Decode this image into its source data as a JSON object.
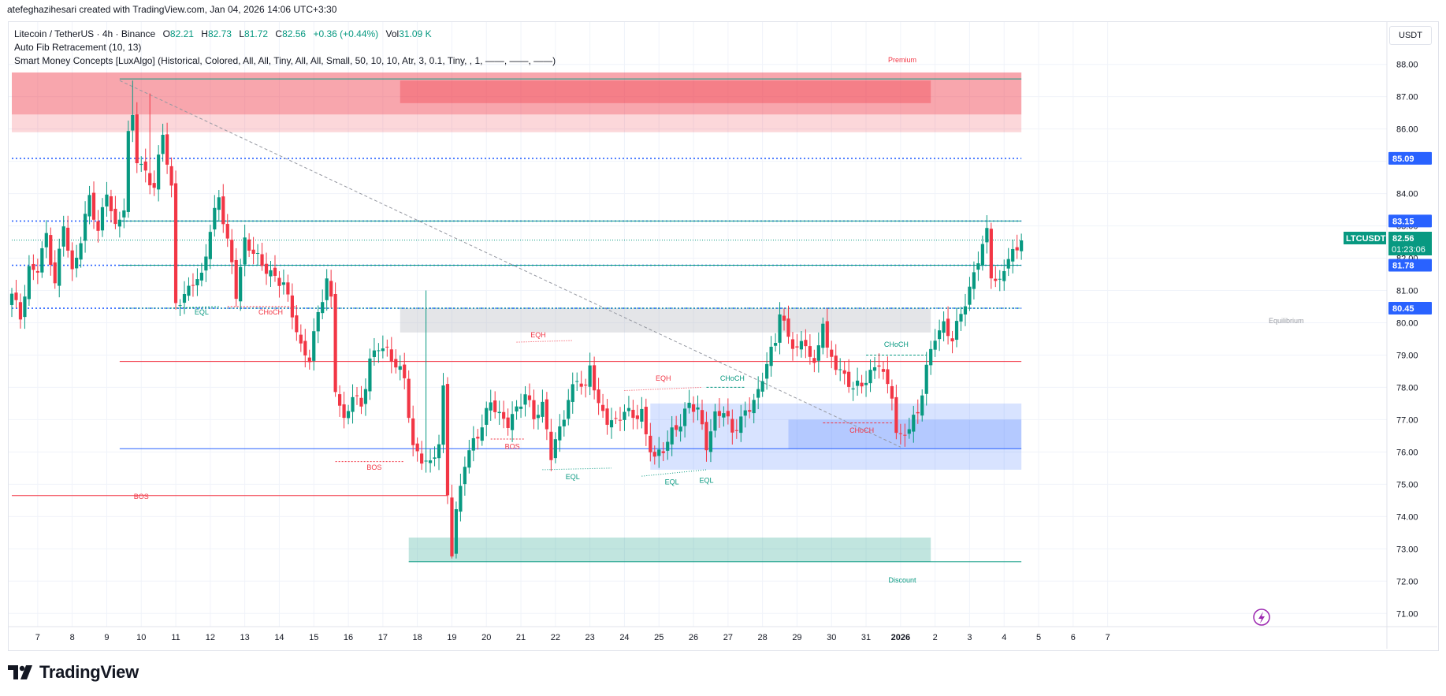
{
  "header": {
    "credit": "atefeghazihesari created with TradingView.com, Jan 04, 2026 14:06 UTC+3:30"
  },
  "legend": {
    "symbol": "Litecoin / TetherUS · 4h · Binance",
    "open_label": "O",
    "open": "82.21",
    "high_label": "H",
    "high": "82.73",
    "low_label": "L",
    "low": "81.72",
    "close_label": "C",
    "close": "82.56",
    "change": "+0.36 (+0.44%)",
    "vol_label": "Vol",
    "vol": "31.09 K",
    "indicator1": "Auto Fib Retracement (10, 13)",
    "indicator2": "Smart Money Concepts [LuxAlgo] (Historical, Colored, All, All, Tiny, All, All, Small, 50, 10, 10, Atr, 3, 0.1, Tiny, , 1, ——, ——, ——)"
  },
  "currency": "USDT",
  "brand": {
    "name": "TradingView",
    "icon": "tradingview-logo-icon"
  },
  "colors": {
    "up": "#089981",
    "down": "#f23645",
    "blue": "#2962ff",
    "premium": "#f23645",
    "discount": "#089981"
  },
  "price_tags": [
    {
      "label": "85.09",
      "price": 85.09,
      "color": "#2962ff"
    },
    {
      "label": "83.15",
      "price": 83.15,
      "color": "#2962ff"
    },
    {
      "label": "81.78",
      "price": 81.78,
      "color": "#2962ff"
    },
    {
      "label": "80.45",
      "price": 80.45,
      "color": "#2962ff"
    }
  ],
  "last_price": {
    "symbol": "LTCUSDT",
    "price": 82.56,
    "label": "82.56",
    "countdown": "01:23:06",
    "color": "#089981"
  },
  "zone_labels": {
    "premium": "Premium",
    "equilibrium": "Equilibrium",
    "discount": "Discount"
  },
  "structure_labels": [
    {
      "text": "EQL",
      "bar": 44,
      "price": 80.25,
      "color": "#089981"
    },
    {
      "text": "CHoCH",
      "bar": 60,
      "price": 80.25,
      "color": "#f23645"
    },
    {
      "text": "BOS",
      "bar": 84,
      "price": 75.45,
      "color": "#f23645"
    },
    {
      "text": "BOS",
      "bar": 30,
      "price": 74.55,
      "color": "#f23645"
    },
    {
      "text": "BOS",
      "bar": 116,
      "price": 76.1,
      "color": "#f23645"
    },
    {
      "text": "EQH",
      "bar": 122,
      "price": 79.55,
      "color": "#f23645"
    },
    {
      "text": "EQL",
      "bar": 130,
      "price": 75.15,
      "color": "#089981"
    },
    {
      "text": "EQH",
      "bar": 151,
      "price": 78.2,
      "color": "#f23645"
    },
    {
      "text": "EQL",
      "bar": 153,
      "price": 75.0,
      "color": "#089981"
    },
    {
      "text": "EQL",
      "bar": 161,
      "price": 75.05,
      "color": "#089981"
    },
    {
      "text": "CHoCH",
      "bar": 167,
      "price": 78.2,
      "color": "#089981"
    },
    {
      "text": "CHoCH",
      "bar": 197,
      "price": 76.6,
      "color": "#f23645"
    },
    {
      "text": "CHoCH",
      "bar": 205,
      "price": 79.25,
      "color": "#089981"
    }
  ],
  "chart_data": {
    "type": "candlestick",
    "title": "",
    "timeframe": "4h",
    "ylim": [
      70.75,
      88.2
    ],
    "y_ticks": [
      71,
      72,
      73,
      74,
      75,
      76,
      77,
      78,
      79,
      80,
      81,
      82,
      83,
      84,
      85,
      86,
      87,
      88
    ],
    "x_tick_labels": [
      {
        "label": "7",
        "bar": 6
      },
      {
        "label": "8",
        "bar": 14
      },
      {
        "label": "9",
        "bar": 22
      },
      {
        "label": "10",
        "bar": 30
      },
      {
        "label": "11",
        "bar": 38
      },
      {
        "label": "12",
        "bar": 46
      },
      {
        "label": "13",
        "bar": 54
      },
      {
        "label": "14",
        "bar": 62
      },
      {
        "label": "15",
        "bar": 70
      },
      {
        "label": "16",
        "bar": 78
      },
      {
        "label": "17",
        "bar": 86
      },
      {
        "label": "18",
        "bar": 94
      },
      {
        "label": "19",
        "bar": 102
      },
      {
        "label": "20",
        "bar": 110
      },
      {
        "label": "21",
        "bar": 118
      },
      {
        "label": "22",
        "bar": 126
      },
      {
        "label": "23",
        "bar": 134
      },
      {
        "label": "24",
        "bar": 142
      },
      {
        "label": "25",
        "bar": 150
      },
      {
        "label": "26",
        "bar": 158
      },
      {
        "label": "27",
        "bar": 166
      },
      {
        "label": "28",
        "bar": 174
      },
      {
        "label": "29",
        "bar": 182
      },
      {
        "label": "30",
        "bar": 190
      },
      {
        "label": "31",
        "bar": 198
      },
      {
        "label": "2026",
        "bar": 206
      },
      {
        "label": "2",
        "bar": 214
      },
      {
        "label": "3",
        "bar": 222
      },
      {
        "label": "4",
        "bar": 230
      },
      {
        "label": "5",
        "bar": 238
      },
      {
        "label": "6",
        "bar": 246
      },
      {
        "label": "7",
        "bar": 254
      }
    ],
    "anchors": [
      [
        0,
        80.9
      ],
      [
        2,
        80.2
      ],
      [
        4,
        81.6
      ],
      [
        6,
        81.7
      ],
      [
        8,
        82.7
      ],
      [
        10,
        81.2
      ],
      [
        12,
        83.1
      ],
      [
        14,
        81.5
      ],
      [
        16,
        82.6
      ],
      [
        18,
        83.9
      ],
      [
        20,
        82.8
      ],
      [
        22,
        84.1
      ],
      [
        24,
        82.9
      ],
      [
        26,
        83.6
      ],
      [
        27,
        85.8
      ],
      [
        28,
        86.4
      ],
      [
        29,
        85.1
      ],
      [
        31,
        84.6
      ],
      [
        33,
        84.2
      ],
      [
        35,
        85.9
      ],
      [
        37,
        84.1
      ],
      [
        38,
        80.6
      ],
      [
        40,
        80.8
      ],
      [
        42,
        81.3
      ],
      [
        44,
        81.4
      ],
      [
        46,
        82.9
      ],
      [
        48,
        83.9
      ],
      [
        49,
        83.2
      ],
      [
        51,
        81.8
      ],
      [
        52,
        80.9
      ],
      [
        54,
        82.5
      ],
      [
        56,
        82.2
      ],
      [
        58,
        81.8
      ],
      [
        60,
        81.5
      ],
      [
        63,
        81.2
      ],
      [
        65,
        80.3
      ],
      [
        67,
        79.2
      ],
      [
        69,
        78.9
      ],
      [
        71,
        80.3
      ],
      [
        73,
        81.3
      ],
      [
        74,
        80.7
      ],
      [
        75,
        78.0
      ],
      [
        77,
        76.9
      ],
      [
        79,
        77.8
      ],
      [
        81,
        77.4
      ],
      [
        83,
        78.8
      ],
      [
        85,
        79.3
      ],
      [
        87,
        79.1
      ],
      [
        89,
        78.7
      ],
      [
        91,
        78.3
      ],
      [
        93,
        76.1
      ],
      [
        95,
        75.8
      ],
      [
        97,
        75.6
      ],
      [
        99,
        76.3
      ],
      [
        100,
        77.9
      ],
      [
        101,
        74.7
      ],
      [
        102,
        72.9
      ],
      [
        103,
        74.1
      ],
      [
        105,
        75.7
      ],
      [
        107,
        76.3
      ],
      [
        109,
        76.8
      ],
      [
        111,
        77.6
      ],
      [
        113,
        77.1
      ],
      [
        115,
        76.9
      ],
      [
        117,
        77.3
      ],
      [
        119,
        77.8
      ],
      [
        121,
        77.1
      ],
      [
        123,
        77.4
      ],
      [
        124,
        76.7
      ],
      [
        125,
        75.9
      ],
      [
        127,
        76.7
      ],
      [
        129,
        77.6
      ],
      [
        131,
        78.3
      ],
      [
        133,
        77.9
      ],
      [
        134,
        78.7
      ],
      [
        136,
        77.4
      ],
      [
        138,
        77.0
      ],
      [
        140,
        76.9
      ],
      [
        142,
        77.3
      ],
      [
        144,
        77.1
      ],
      [
        146,
        77.2
      ],
      [
        147,
        76.5
      ],
      [
        149,
        75.8
      ],
      [
        151,
        76.1
      ],
      [
        153,
        76.6
      ],
      [
        155,
        76.9
      ],
      [
        157,
        77.5
      ],
      [
        159,
        77.3
      ],
      [
        161,
        76.2
      ],
      [
        163,
        77.1
      ],
      [
        165,
        77.3
      ],
      [
        167,
        76.6
      ],
      [
        169,
        77.0
      ],
      [
        171,
        77.4
      ],
      [
        173,
        77.8
      ],
      [
        175,
        78.8
      ],
      [
        177,
        79.4
      ],
      [
        178,
        80.4
      ],
      [
        180,
        79.5
      ],
      [
        182,
        79.2
      ],
      [
        184,
        79.4
      ],
      [
        186,
        78.6
      ],
      [
        188,
        80.1
      ],
      [
        189,
        79.1
      ],
      [
        191,
        78.7
      ],
      [
        193,
        78.3
      ],
      [
        195,
        78.0
      ],
      [
        197,
        78.1
      ],
      [
        199,
        78.4
      ],
      [
        201,
        78.8
      ],
      [
        203,
        78.0
      ],
      [
        204,
        77.8
      ],
      [
        205,
        76.6
      ],
      [
        206,
        76.4
      ],
      [
        208,
        76.8
      ],
      [
        210,
        77.2
      ],
      [
        212,
        78.6
      ],
      [
        214,
        79.6
      ],
      [
        216,
        79.9
      ],
      [
        218,
        79.5
      ],
      [
        220,
        80.3
      ],
      [
        222,
        81.0
      ],
      [
        224,
        82.0
      ],
      [
        226,
        82.8
      ],
      [
        227,
        81.5
      ],
      [
        229,
        81.2
      ],
      [
        231,
        82.1
      ],
      [
        233,
        82.2
      ],
      [
        234,
        82.55
      ]
    ],
    "zones": [
      {
        "name": "premium-zone",
        "x1": 0,
        "x2": 234,
        "y1": 86.45,
        "y2": 87.75,
        "color": "#f23645",
        "opacity": 0.3
      },
      {
        "name": "premium-zone-inner",
        "x1": 0,
        "x2": 234,
        "y1": 85.9,
        "y2": 87.75,
        "color": "#f23645",
        "opacity": 0.2
      },
      {
        "name": "premium-orderblock",
        "x1": 90,
        "x2": 213,
        "y1": 86.8,
        "y2": 87.5,
        "color": "#f23645",
        "opacity": 0.35
      },
      {
        "name": "equilibrium-zone",
        "x1": 90,
        "x2": 213,
        "y1": 79.7,
        "y2": 80.45,
        "color": "#b2b5be",
        "opacity": 0.35
      },
      {
        "name": "demand-zone",
        "x1": 148,
        "x2": 234,
        "y1": 75.45,
        "y2": 77.5,
        "color": "#2962ff",
        "opacity": 0.18
      },
      {
        "name": "demand-orderblock",
        "x1": 180,
        "x2": 234,
        "y1": 76.1,
        "y2": 77.0,
        "color": "#2962ff",
        "opacity": 0.2
      },
      {
        "name": "discount-zone",
        "x1": 92,
        "x2": 213,
        "y1": 72.6,
        "y2": 73.35,
        "color": "#089981",
        "opacity": 0.25
      }
    ],
    "levels": [
      {
        "name": "fib-85-09",
        "price": 85.09,
        "x1": 0,
        "x2": 234,
        "color": "#2962ff",
        "dash": "2,3"
      },
      {
        "name": "fib-83-15",
        "price": 83.15,
        "x1": 0,
        "x2": 234,
        "color": "#2962ff",
        "dash": "2,3"
      },
      {
        "name": "fib-81-78",
        "price": 81.78,
        "x1": 0,
        "x2": 234,
        "color": "#2962ff",
        "dash": "2,3"
      },
      {
        "name": "fib-80-45",
        "price": 80.45,
        "x1": 0,
        "x2": 234,
        "color": "#2962ff",
        "dash": "2,3"
      },
      {
        "name": "sm-81-78",
        "price": 81.78,
        "x1": 25,
        "x2": 234,
        "color": "#089981",
        "dash": ""
      },
      {
        "name": "sm-80-45",
        "price": 80.45,
        "x1": 25,
        "x2": 234,
        "color": "#089981",
        "dash": "2,2"
      },
      {
        "name": "sm-83-15",
        "price": 83.15,
        "x1": 25,
        "x2": 234,
        "color": "#089981",
        "dash": ""
      },
      {
        "name": "last-price-line",
        "price": 82.56,
        "x1": 0,
        "x2": 234,
        "color": "#089981",
        "dash": "1,2"
      },
      {
        "name": "bos-74-65",
        "price": 74.65,
        "x1": 0,
        "x2": 101,
        "color": "#f23645",
        "dash": ""
      },
      {
        "name": "line-78-8",
        "price": 78.8,
        "x1": 25,
        "x2": 234,
        "color": "#f23645",
        "dash": ""
      },
      {
        "name": "line-76-1",
        "price": 76.1,
        "x1": 25,
        "x2": 234,
        "color": "#2962ff",
        "dash": ""
      },
      {
        "name": "discount-bottom",
        "price": 72.6,
        "x1": 92,
        "x2": 234,
        "color": "#089981",
        "dash": ""
      },
      {
        "name": "premium-top",
        "price": 87.55,
        "x1": 25,
        "x2": 234,
        "color": "#089981",
        "dash": ""
      }
    ],
    "trendline": {
      "x1": 25,
      "y1": 87.5,
      "x2": 206,
      "y2": 76.15
    },
    "struct_lines": [
      {
        "x1": 36,
        "x2": 48,
        "y1": 80.45,
        "y2": 80.5,
        "color": "#089981",
        "dash": "2,2"
      },
      {
        "x1": 50,
        "x2": 66,
        "y1": 80.5,
        "y2": 80.5,
        "color": "#f23645",
        "dash": "2,2"
      },
      {
        "x1": 75,
        "x2": 91,
        "y1": 75.7,
        "y2": 75.7,
        "color": "#f23645",
        "dash": "2,2"
      },
      {
        "x1": 111,
        "x2": 119,
        "y1": 76.4,
        "y2": 76.4,
        "color": "#f23645",
        "dash": "2,2"
      },
      {
        "x1": 117,
        "x2": 130,
        "y1": 79.4,
        "y2": 79.45,
        "color": "#f23645",
        "dash": "1,2"
      },
      {
        "x1": 123,
        "x2": 139,
        "y1": 75.45,
        "y2": 75.5,
        "color": "#089981",
        "dash": "1,2"
      },
      {
        "x1": 142,
        "x2": 160,
        "y1": 77.9,
        "y2": 78.0,
        "color": "#f23645",
        "dash": "1,2"
      },
      {
        "x1": 146,
        "x2": 161,
        "y1": 75.25,
        "y2": 75.45,
        "color": "#089981",
        "dash": "1,2"
      },
      {
        "x1": 161,
        "x2": 170,
        "y1": 78.0,
        "y2": 78.0,
        "color": "#089981",
        "dash": "3,2"
      },
      {
        "x1": 188,
        "x2": 204,
        "y1": 76.9,
        "y2": 76.9,
        "color": "#f23645",
        "dash": "3,2"
      },
      {
        "x1": 198,
        "x2": 212,
        "y1": 79.0,
        "y2": 79.0,
        "color": "#089981",
        "dash": "3,2"
      }
    ]
  }
}
